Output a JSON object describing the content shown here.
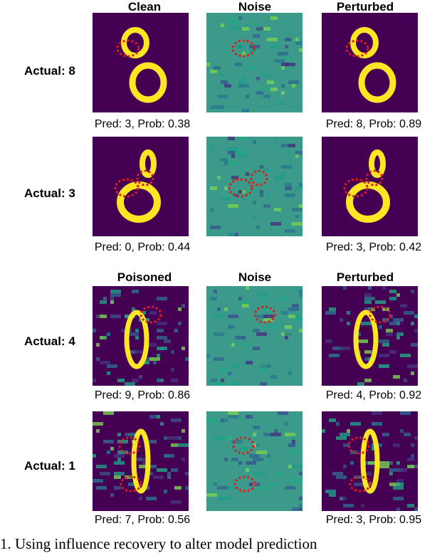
{
  "sections": [
    {
      "headers": [
        "Clean",
        "Noise",
        "Perturbed"
      ],
      "rows": [
        {
          "label": "Actual: 8",
          "captions": [
            "Pred: 3, Prob: 0.38",
            "",
            "Pred: 8, Prob: 0.89"
          ]
        },
        {
          "label": "Actual: 3",
          "captions": [
            "Pred: 0, Prob: 0.44",
            "",
            "Pred: 3, Prob: 0.42"
          ]
        }
      ]
    },
    {
      "headers": [
        "Poisoned",
        "Noise",
        "Perturbed"
      ],
      "rows": [
        {
          "label": "Actual: 4",
          "captions": [
            "Pred: 9, Prob: 0.86",
            "",
            "Pred: 4, Prob: 0.92"
          ]
        },
        {
          "label": "Actual: 1",
          "captions": [
            "Pred: 7, Prob: 0.56",
            "",
            "Pred: 3, Prob: 0.95"
          ]
        }
      ]
    }
  ],
  "footer_text": "1.  Using influence recovery to alter model prediction",
  "colors": {
    "background": "#440154",
    "digit": "#fde725",
    "noise": "#3b9a8a",
    "highlight": "#e31a1c"
  }
}
